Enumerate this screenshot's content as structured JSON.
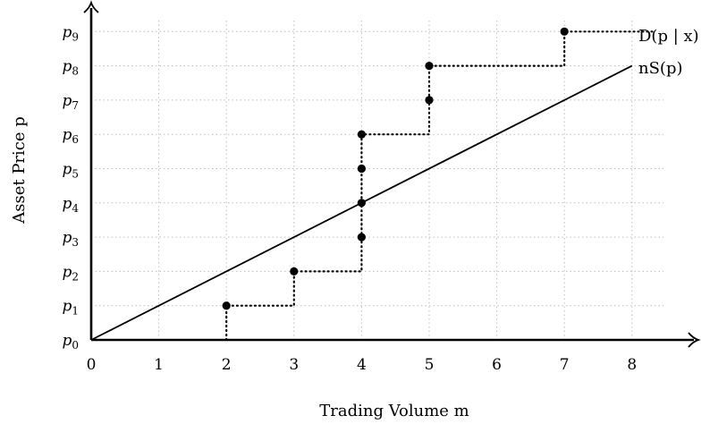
{
  "chart_data": {
    "type": "line",
    "xlabel": "Trading Volume m",
    "ylabel": "Asset Price p",
    "xlim": [
      0,
      9
    ],
    "ylim": [
      0,
      9.6
    ],
    "x_ticks": [
      0,
      1,
      2,
      3,
      4,
      5,
      6,
      7,
      8
    ],
    "x_tick_labels": [
      "0",
      "1",
      "2",
      "3",
      "4",
      "5",
      "6",
      "7",
      "8"
    ],
    "y_ticks": [
      0,
      1,
      2,
      3,
      4,
      5,
      6,
      7,
      8,
      9
    ],
    "y_tick_labels": [
      "p0",
      "p1",
      "p2",
      "p3",
      "p4",
      "p5",
      "p6",
      "p7",
      "p8",
      "p9"
    ],
    "grid": true,
    "series": [
      {
        "name": "D(p | x)",
        "style": "dotted-step",
        "points": [
          {
            "x": 2,
            "y": 1
          },
          {
            "x": 3,
            "y": 2
          },
          {
            "x": 4,
            "y": 3
          },
          {
            "x": 4,
            "y": 4
          },
          {
            "x": 4,
            "y": 5
          },
          {
            "x": 4,
            "y": 6
          },
          {
            "x": 5,
            "y": 7
          },
          {
            "x": 5,
            "y": 8
          },
          {
            "x": 7,
            "y": 9
          }
        ],
        "step_path": [
          {
            "x": 2,
            "y": 0
          },
          {
            "x": 2,
            "y": 1
          },
          {
            "x": 3,
            "y": 1
          },
          {
            "x": 3,
            "y": 2
          },
          {
            "x": 4,
            "y": 2
          },
          {
            "x": 4,
            "y": 6
          },
          {
            "x": 5,
            "y": 6
          },
          {
            "x": 5,
            "y": 8
          },
          {
            "x": 7,
            "y": 8
          },
          {
            "x": 7,
            "y": 9
          },
          {
            "x": 8.3,
            "y": 9
          }
        ]
      },
      {
        "name": "nS(p)",
        "style": "solid",
        "points": [
          {
            "x": 0,
            "y": 0
          },
          {
            "x": 8,
            "y": 8
          }
        ]
      }
    ]
  }
}
